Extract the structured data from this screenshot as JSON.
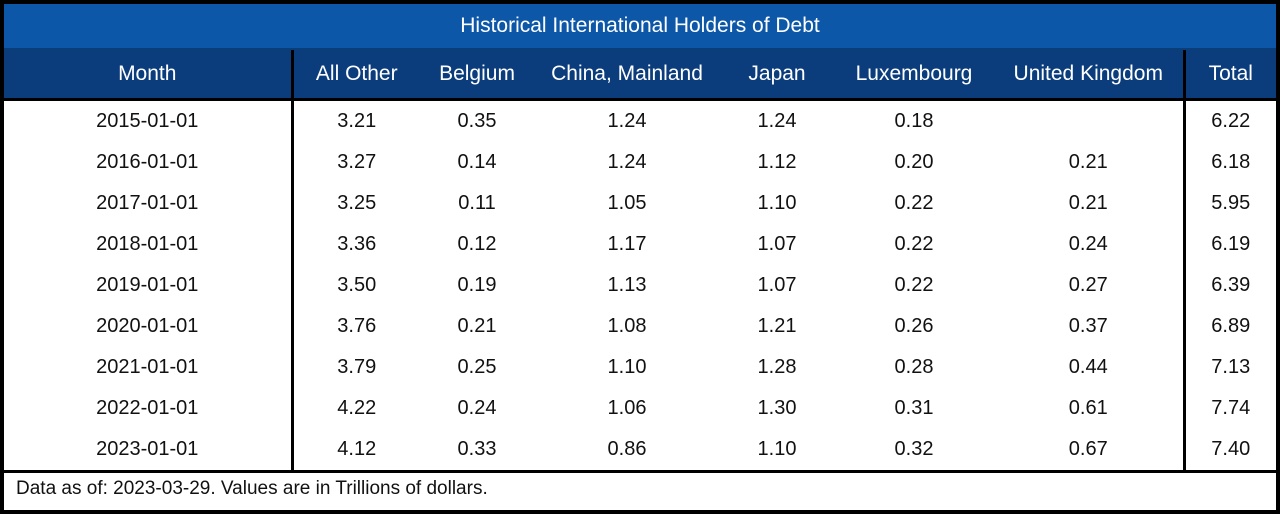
{
  "chart_data": {
    "type": "table",
    "title": "Historical International Holders of Debt",
    "columns": [
      "Month",
      "All Other",
      "Belgium",
      "China, Mainland",
      "Japan",
      "Luxembourg",
      "United Kingdom",
      "Total"
    ],
    "rows": [
      [
        "2015-01-01",
        "3.21",
        "0.35",
        "1.24",
        "1.24",
        "0.18",
        "",
        "6.22"
      ],
      [
        "2016-01-01",
        "3.27",
        "0.14",
        "1.24",
        "1.12",
        "0.20",
        "0.21",
        "6.18"
      ],
      [
        "2017-01-01",
        "3.25",
        "0.11",
        "1.05",
        "1.10",
        "0.22",
        "0.21",
        "5.95"
      ],
      [
        "2018-01-01",
        "3.36",
        "0.12",
        "1.17",
        "1.07",
        "0.22",
        "0.24",
        "6.19"
      ],
      [
        "2019-01-01",
        "3.50",
        "0.19",
        "1.13",
        "1.07",
        "0.22",
        "0.27",
        "6.39"
      ],
      [
        "2020-01-01",
        "3.76",
        "0.21",
        "1.08",
        "1.21",
        "0.26",
        "0.37",
        "6.89"
      ],
      [
        "2021-01-01",
        "3.79",
        "0.25",
        "1.10",
        "1.28",
        "0.28",
        "0.44",
        "7.13"
      ],
      [
        "2022-01-01",
        "4.22",
        "0.24",
        "1.06",
        "1.30",
        "0.31",
        "0.61",
        "7.74"
      ],
      [
        "2023-01-01",
        "4.12",
        "0.33",
        "0.86",
        "1.10",
        "0.32",
        "0.67",
        "7.40"
      ]
    ],
    "footnote": "Data as of: 2023-03-29. Values are in Trillions of dollars."
  },
  "colors": {
    "title_bar": "#0c57a8",
    "header_row": "#0b3d7d",
    "border": "#000000"
  }
}
